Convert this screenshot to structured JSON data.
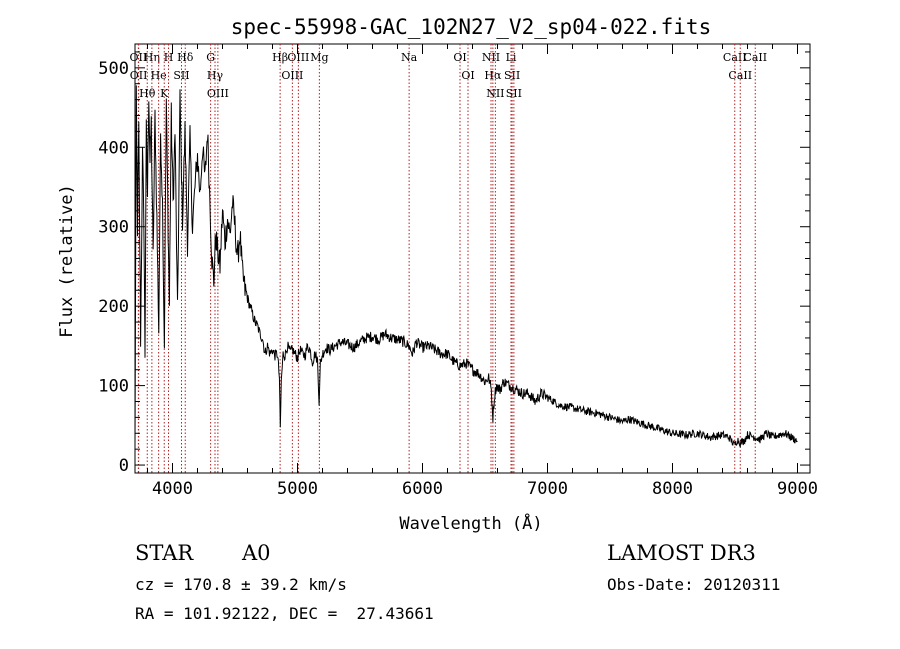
{
  "chart_data": {
    "type": "line",
    "title": "spec-55998-GAC_102N27_V2_sp04-022.fits",
    "xlabel": "Wavelength (Å)",
    "ylabel": "Flux (relative)",
    "xlim": [
      3700,
      9100
    ],
    "ylim": [
      -10,
      530
    ],
    "xticks": [
      4000,
      5000,
      6000,
      7000,
      8000,
      9000
    ],
    "yticks": [
      0,
      100,
      200,
      300,
      400,
      500
    ],
    "series": [
      {
        "name": "flux",
        "x": [
          3700,
          3710,
          3720,
          3730,
          3745,
          3760,
          3770,
          3780,
          3790,
          3800,
          3810,
          3820,
          3830,
          3845,
          3860,
          3875,
          3890,
          3905,
          3920,
          3935,
          3950,
          3965,
          3975,
          3990,
          4005,
          4020,
          4040,
          4060,
          4080,
          4100,
          4120,
          4140,
          4160,
          4180,
          4200,
          4220,
          4240,
          4260,
          4280,
          4300,
          4315,
          4330,
          4345,
          4360,
          4380,
          4400,
          4420,
          4440,
          4460,
          4480,
          4500,
          4520,
          4540,
          4560,
          4580,
          4600,
          4620,
          4640,
          4660,
          4680,
          4700,
          4720,
          4740,
          4760,
          4780,
          4800,
          4820,
          4840,
          4855,
          4862,
          4870,
          4885,
          4900,
          4920,
          4940,
          4960,
          4980,
          5000,
          5020,
          5040,
          5060,
          5080,
          5100,
          5120,
          5140,
          5160,
          5173,
          5183,
          5200,
          5230,
          5260,
          5300,
          5350,
          5400,
          5450,
          5500,
          5550,
          5600,
          5650,
          5700,
          5750,
          5800,
          5850,
          5890,
          5920,
          5950,
          6000,
          6050,
          6100,
          6150,
          6200,
          6250,
          6300,
          6350,
          6400,
          6450,
          6500,
          6530,
          6550,
          6563,
          6575,
          6590,
          6620,
          6650,
          6700,
          6750,
          6800,
          6850,
          6900,
          6950,
          7000,
          7100,
          7200,
          7300,
          7400,
          7500,
          7600,
          7650,
          7700,
          7800,
          7900,
          8000,
          8100,
          8200,
          8300,
          8400,
          8450,
          8498,
          8520,
          8542,
          8570,
          8600,
          8662,
          8700,
          8750,
          8800,
          8850,
          8900,
          8950,
          8980,
          9000
        ],
        "y": [
          20,
          460,
          300,
          420,
          160,
          390,
          320,
          140,
          420,
          340,
          470,
          380,
          430,
          260,
          440,
          310,
          170,
          420,
          330,
          150,
          460,
          300,
          200,
          440,
          330,
          420,
          190,
          460,
          310,
          420,
          280,
          410,
          300,
          350,
          390,
          340,
          400,
          360,
          420,
          330,
          260,
          230,
          290,
          270,
          250,
          320,
          280,
          310,
          290,
          330,
          300,
          260,
          290,
          240,
          220,
          210,
          200,
          190,
          180,
          175,
          165,
          160,
          140,
          150,
          140,
          145,
          138,
          140,
          110,
          45,
          105,
          140,
          138,
          150,
          142,
          145,
          140,
          135,
          145,
          140,
          138,
          150,
          145,
          130,
          140,
          132,
          80,
          128,
          140,
          148,
          145,
          150,
          155,
          152,
          148,
          155,
          160,
          162,
          158,
          165,
          160,
          158,
          155,
          150,
          140,
          155,
          148,
          150,
          145,
          140,
          140,
          130,
          125,
          128,
          120,
          115,
          105,
          110,
          95,
          60,
          85,
          100,
          95,
          105,
          100,
          95,
          90,
          90,
          80,
          90,
          85,
          75,
          72,
          68,
          65,
          60,
          55,
          58,
          55,
          50,
          45,
          40,
          38,
          40,
          35,
          38,
          35,
          25,
          32,
          28,
          30,
          38,
          35,
          32,
          40,
          35,
          38,
          40,
          35,
          32,
          30
        ]
      }
    ],
    "emission_lines": [
      {
        "label": "Hθ",
        "wave": 3798
      },
      {
        "label": "OII",
        "wave": 3727
      },
      {
        "label": "OII",
        "wave": 3729
      },
      {
        "label": "He",
        "wave": 3889
      },
      {
        "label": "Hη",
        "wave": 3835
      },
      {
        "label": "K",
        "wave": 3934
      },
      {
        "label": "H",
        "wave": 3968
      },
      {
        "label": "SII",
        "wave": 4072
      },
      {
        "label": "Hδ",
        "wave": 4102
      },
      {
        "label": "OIII",
        "wave": 4363
      },
      {
        "label": "Hγ",
        "wave": 4340
      },
      {
        "label": "G",
        "wave": 4305
      },
      {
        "label": "Hβ",
        "wave": 4861
      },
      {
        "label": "OIII",
        "wave": 4959
      },
      {
        "label": "OIII",
        "wave": 5007
      },
      {
        "label": "Mg",
        "wave": 5175
      },
      {
        "label": "Na",
        "wave": 5893
      },
      {
        "label": "OI",
        "wave": 6300
      },
      {
        "label": "OI",
        "wave": 6364
      },
      {
        "label": "NII",
        "wave": 6548
      },
      {
        "label": "Hα",
        "wave": 6563
      },
      {
        "label": "NII",
        "wave": 6583
      },
      {
        "label": "Li",
        "wave": 6708
      },
      {
        "label": "SII",
        "wave": 6717
      },
      {
        "label": "SII",
        "wave": 6731
      },
      {
        "label": "CaII",
        "wave": 8498
      },
      {
        "label": "CaII",
        "wave": 8542
      },
      {
        "label": "CaII",
        "wave": 8662
      }
    ]
  },
  "info": {
    "class": "STAR",
    "subclass": "A0",
    "survey": "LAMOST DR3",
    "redshift": "cz = 170.8 ± 39.2 km/s",
    "obsdate": "Obs-Date: 20120311",
    "coords": "RA = 101.92122, DEC =  27.43661"
  },
  "colors": {
    "axis": "#000000",
    "spectrum": "#000000",
    "line_marker": "#b22222",
    "background": "#ffffff"
  }
}
